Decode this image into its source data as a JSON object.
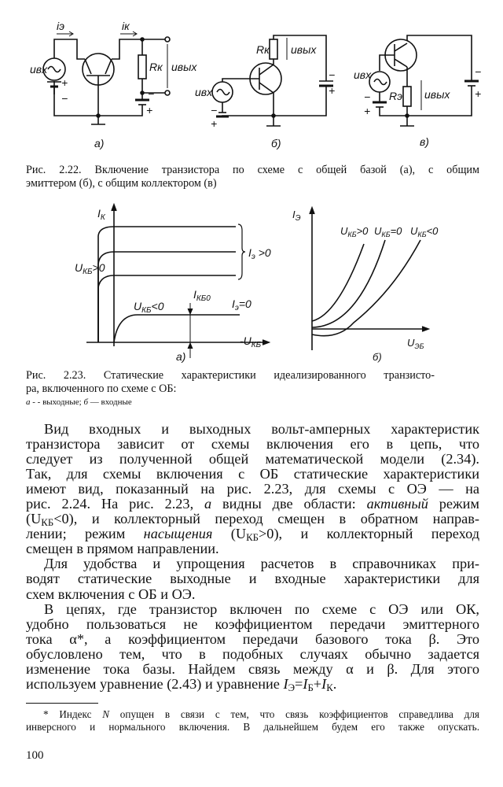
{
  "fig222": {
    "a": {
      "i_e": "iэ",
      "i_k": "iк",
      "u_in": "uвх",
      "r_k": "Rк",
      "u_out": "uвых",
      "plus": "+",
      "minus": "−",
      "label": "а)"
    },
    "b": {
      "u_in": "uвх",
      "r_k": "Rк",
      "u_out": "uвых",
      "plus": "+",
      "minus": "−",
      "label": "б)"
    },
    "c": {
      "u_in": "uвх",
      "r_e": "Rэ",
      "u_out": "uвых",
      "plus": "+",
      "minus": "−",
      "label": "в)"
    },
    "caption": [
      "Рис. 2.22. Включение транзистора по схеме с общей базой (а), с общим",
      "эмиттером (б), с общим коллектором (в)"
    ]
  },
  "fig223": {
    "a": {
      "y_axis": "I",
      "y_sub": "К",
      "u_pos_main": "U",
      "u_pos_sub": "КБ",
      "u_pos_rest": ">0",
      "ie_pos_main": "I",
      "ie_pos_sub": "э",
      "ie_pos_rest": " >0",
      "u_neg_main": "U",
      "u_neg_sub": "КБ",
      "u_neg_rest": "<0",
      "ikb0_main": "I",
      "ikb0_sub": "КБ0",
      "ie0_main": "I",
      "ie0_sub": "э",
      "ie0_rest": "=0",
      "x_axis": "-U",
      "x_sub": "КБ",
      "label": "а)"
    },
    "b": {
      "y_axis": "I",
      "y_sub": "Э",
      "c1_main": "U",
      "c1_sub": "КБ",
      "c1_rest": ">0",
      "c2_main": "U",
      "c2_sub": "КБ",
      "c2_rest": "=0",
      "c3_main": "U",
      "c3_sub": "КБ",
      "c3_rest": "<0",
      "x_axis": "U",
      "x_sub": "ЭБ",
      "label": "б)"
    },
    "caption": [
      "Рис. 2.23. Статические характеристики идеализированного транзисто-",
      "ра, включенного по схеме с ОБ:"
    ],
    "legend": {
      "a": "а",
      "a_text": " - - выходные; ",
      "b": "б",
      "b_text": " — входные"
    }
  },
  "body": {
    "l1": "Вид входных и выходных вольт-амперных характеристик",
    "l2": "транзистора зависит от схемы включения его в цепь, что",
    "l3": "следует из полученной общей математической модели (2.34).",
    "l4": "Так, для схемы включения с ОБ статические характеристики",
    "l5": "имеют вид, показанный на рис. 2.23, для схемы с ОЭ — на",
    "l6a": "рис. 2.24. На рис. 2.23, ",
    "l6b": "а",
    "l6c": " видны две области: ",
    "l6d": "активный",
    "l6e": " режим",
    "l7a": "(U",
    "l7b": "КБ",
    "l7c": "<0), и коллекторный переход смещен в обратном направ-",
    "l8a": "лении; режим ",
    "l8b": "насыщения",
    "l8c": " (U",
    "l8d": "КБ",
    "l8e": ">0), и коллекторный переход",
    "l9": "смещен в прямом направлении.",
    "l10": "Для удобства и упрощения расчетов в справочниках при-",
    "l11": "водят статические выходные и входные характеристики для",
    "l12": "схем включения с ОБ и ОЭ.",
    "l13": "В цепях, где транзистор включен по схеме с ОЭ или ОК,",
    "l14": "удобно пользоваться не коэффициентом передачи эмиттерного",
    "l15": "тока α*, а коэффициентом передачи базового тока β. Это",
    "l16": "обусловлено тем, что в подобных случаях обычно задается",
    "l17": "изменение тока базы. Найдем связь между α и β. Для этого",
    "l18a": "используем уравнение (2.43) и уравнение ",
    "l18b": "I",
    "l18c": "Э",
    "l18d": "=",
    "l18e": "I",
    "l18f": "Б",
    "l18g": "+",
    "l18h": "I",
    "l18i": "К",
    "l18j": "."
  },
  "footnote": {
    "l1a": "* Индекс ",
    "l1b": "N",
    "l1c": " опущен в связи с тем, что связь коэффициентов справедлива для",
    "l2": "инверсного и нормального включения. В дальнейшем будем его также опускать."
  },
  "page_number": "100"
}
